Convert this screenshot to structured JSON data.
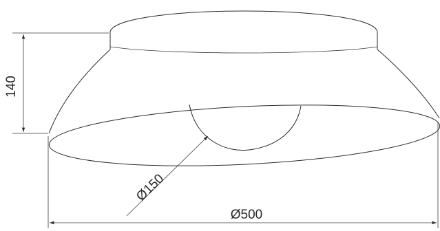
{
  "drawing": {
    "dimensions": {
      "height": "140",
      "bulb_diameter": "Ø150",
      "overall_diameter": "Ø500"
    }
  }
}
